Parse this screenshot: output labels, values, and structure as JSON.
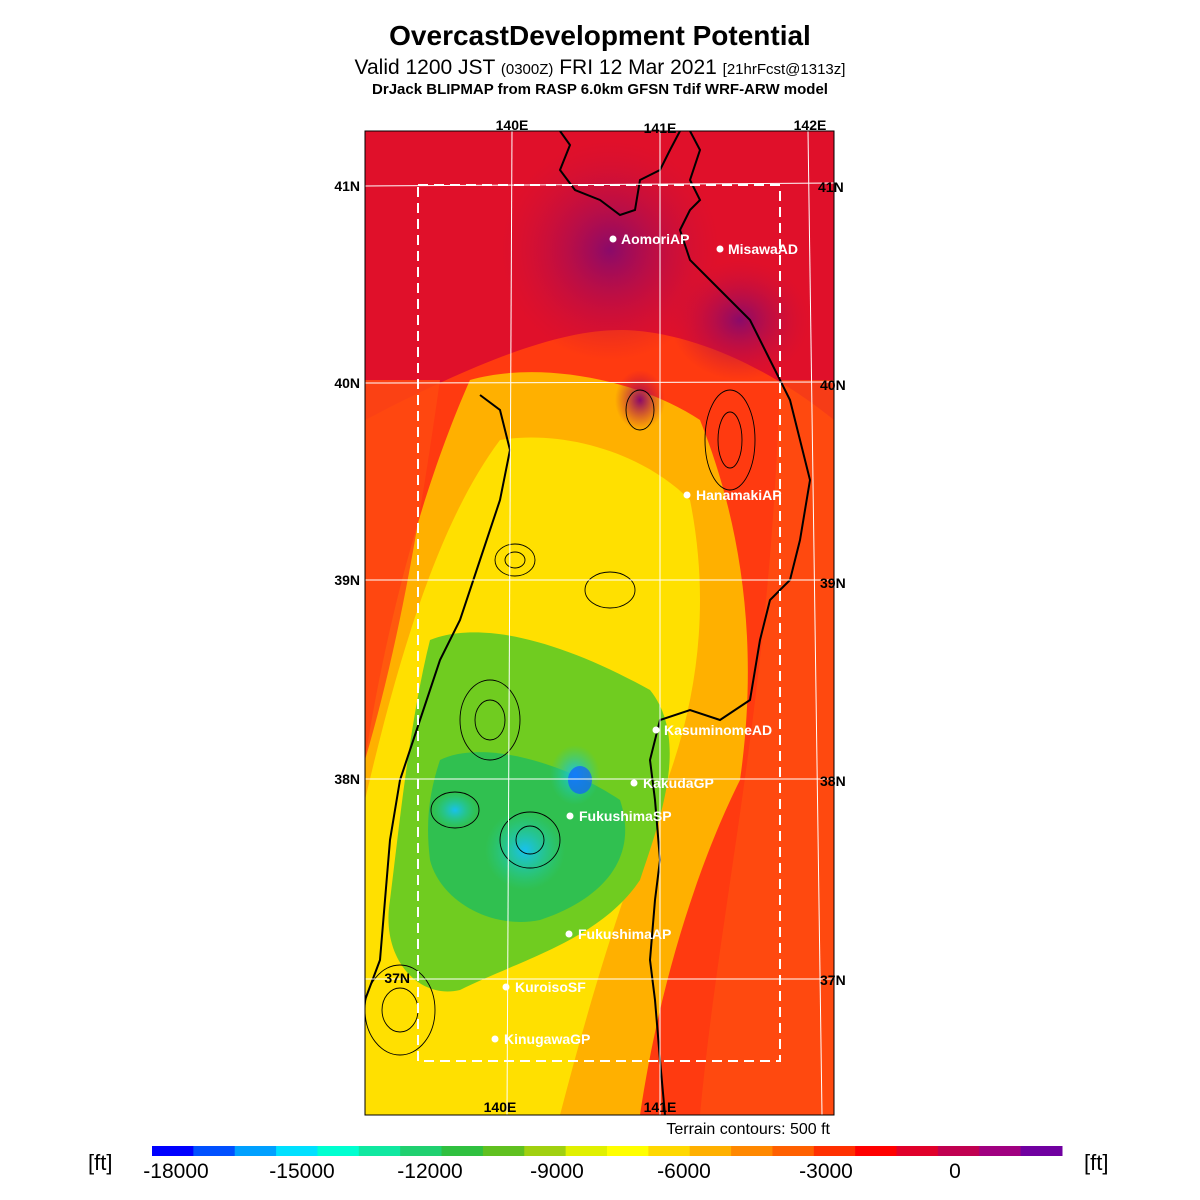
{
  "header": {
    "title": "OvercastDevelopment Potential",
    "valid_prefix": "Valid 1200 JST",
    "valid_utc": "(0300Z)",
    "valid_date": "FRI 12 Mar 2021",
    "forecast_info": "[21hrFcst@1313z]",
    "model_line": "DrJack BLIPMAP from RASP 6.0km GFSN Tdif WRF-ARW model"
  },
  "map": {
    "lon_labels_top": [
      "140E",
      "141E",
      "142E"
    ],
    "lon_labels_bottom": [
      "140E",
      "141E"
    ],
    "lat_labels": [
      "41N",
      "40N",
      "39N",
      "38N",
      "37N"
    ],
    "sites": [
      {
        "name": "AomoriAP"
      },
      {
        "name": "MisawaAD"
      },
      {
        "name": "HanamakiAP"
      },
      {
        "name": "KasuminomeAD"
      },
      {
        "name": "KakudaGP"
      },
      {
        "name": "FukushimaSP"
      },
      {
        "name": "FukushimaAP"
      },
      {
        "name": "KuroisoSF"
      },
      {
        "name": "KinugawaGP"
      }
    ]
  },
  "footer": {
    "terrain_note": "Terrain contours: 500 ft",
    "unit_left": "[ft]",
    "unit_right": "[ft]",
    "colorbar_ticks": [
      "-18000",
      "-15000",
      "-12000",
      "-9000",
      "-6000",
      "-3000",
      "0"
    ],
    "colorbar_colors": [
      "#0000ff",
      "#0050ff",
      "#00a0ff",
      "#00e0ff",
      "#00ffd0",
      "#10e8a0",
      "#20d070",
      "#30c040",
      "#60c020",
      "#a0d010",
      "#e0f000",
      "#ffff00",
      "#ffd800",
      "#ffb000",
      "#ff8800",
      "#ff6000",
      "#ff3000",
      "#ff0000",
      "#e0002a",
      "#c00050",
      "#a00080",
      "#7000a0"
    ]
  }
}
